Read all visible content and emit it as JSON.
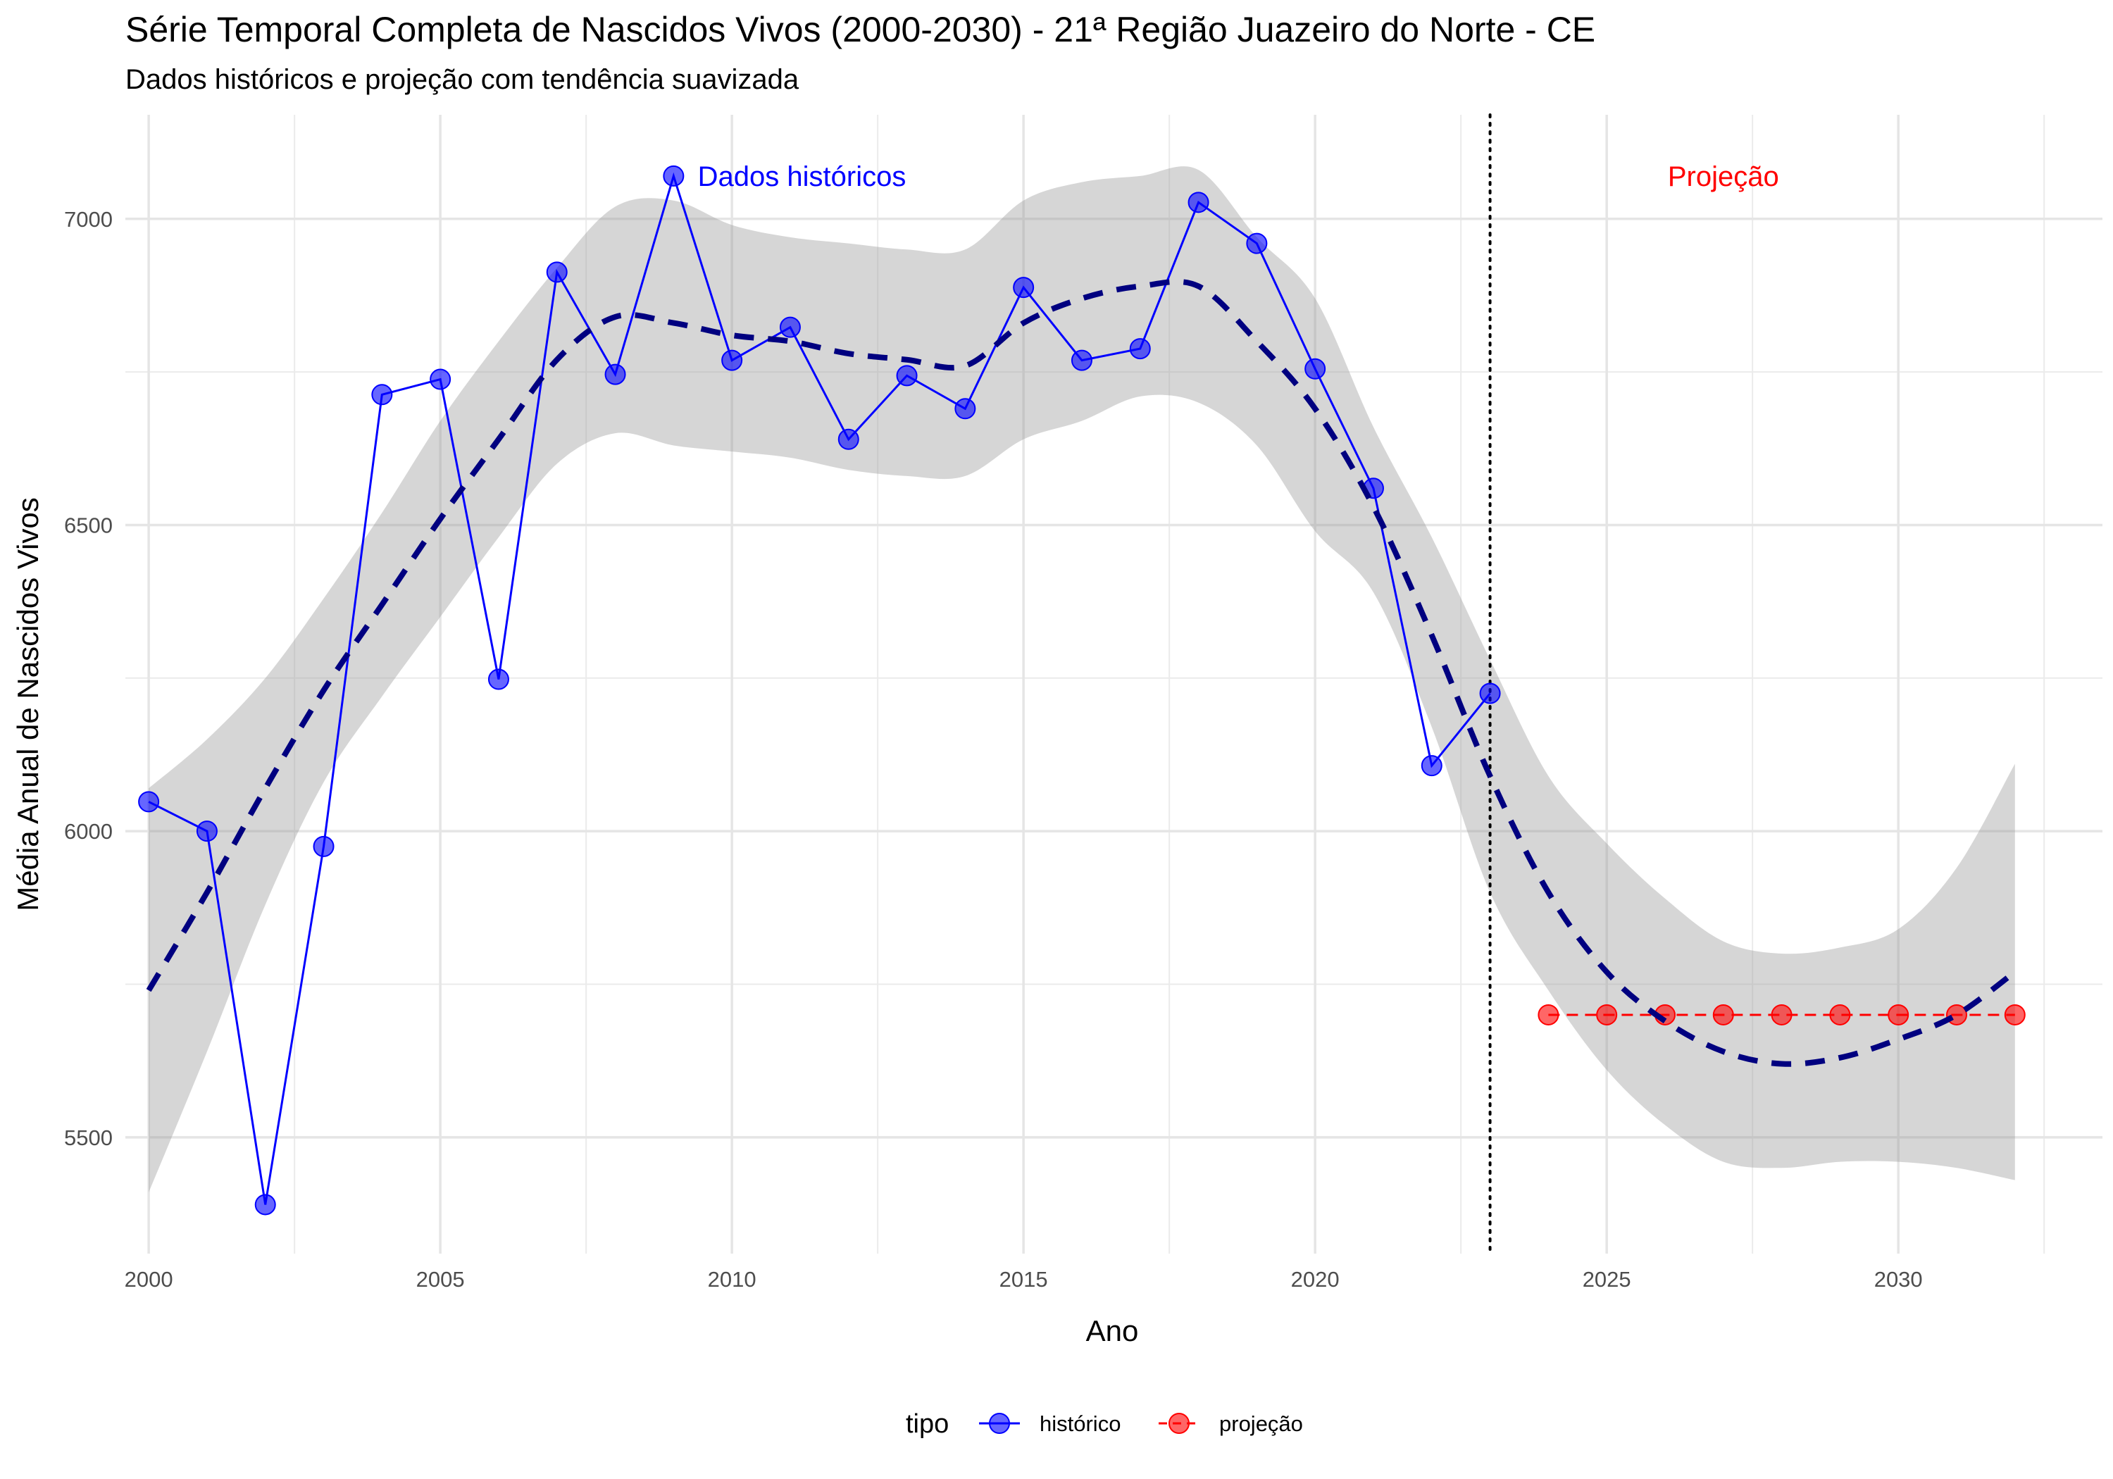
{
  "chart_data": {
    "type": "line",
    "title": "Série Temporal Completa de Nascidos Vivos (2000-2030) -  21ª Região Juazeiro do Norte - CE",
    "subtitle": "Dados históricos e projeção com tendência suavizada",
    "xlabel": "Ano",
    "ylabel": "Média Anual de Nascidos Vivos",
    "xlim": [
      1999.6,
      2033.5
    ],
    "ylim": [
      5310,
      7170
    ],
    "x_ticks": [
      2000,
      2005,
      2010,
      2015,
      2020,
      2025,
      2030
    ],
    "x_tick_labels": [
      "2000",
      "2005",
      "2010",
      "2015",
      "2020",
      "2025",
      "2030"
    ],
    "y_ticks": [
      5500,
      6000,
      6500,
      7000
    ],
    "y_tick_labels": [
      "5500",
      "6000",
      "6500",
      "7000"
    ],
    "grid": true,
    "legend": {
      "title": "tipo",
      "position": "bottom",
      "entries": [
        "histórico",
        "projeção"
      ]
    },
    "divider_year": 2023,
    "annotations": [
      {
        "text": "Dados históricos",
        "x": 2011.2,
        "y": 7070,
        "color": "#0000ff"
      },
      {
        "text": "Projeção",
        "x": 2027.0,
        "y": 7070,
        "color": "#ff0000"
      }
    ],
    "series": [
      {
        "name": "histórico",
        "color": "#0000ff",
        "x": [
          2000,
          2001,
          2002,
          2003,
          2004,
          2005,
          2006,
          2007,
          2008,
          2009,
          2010,
          2011,
          2012,
          2013,
          2014,
          2015,
          2016,
          2017,
          2018,
          2019,
          2020,
          2021,
          2022,
          2023
        ],
        "y": [
          6048,
          6000,
          5390,
          5975,
          6713,
          6738,
          6248,
          6913,
          6746,
          7070,
          6769,
          6823,
          6640,
          6744,
          6690,
          6888,
          6769,
          6788,
          7027,
          6960,
          6755,
          6560,
          6107,
          6225
        ]
      },
      {
        "name": "projeção",
        "color": "#ff0000",
        "x": [
          2024,
          2025,
          2026,
          2027,
          2028,
          2029,
          2030,
          2031,
          2032
        ],
        "y": [
          5700,
          5700,
          5700,
          5700,
          5700,
          5700,
          5700,
          5700,
          5700
        ]
      }
    ],
    "smooth": {
      "color": "#000080",
      "x": [
        2000,
        2001,
        2002,
        2003,
        2004,
        2005,
        2006,
        2007,
        2008,
        2009,
        2010,
        2011,
        2012,
        2013,
        2014,
        2015,
        2016,
        2017,
        2018,
        2019,
        2020,
        2021,
        2022,
        2023,
        2024,
        2025,
        2026,
        2027,
        2028,
        2029,
        2030,
        2031,
        2032
      ],
      "y": [
        5740,
        5900,
        6070,
        6230,
        6370,
        6510,
        6640,
        6770,
        6840,
        6830,
        6810,
        6800,
        6780,
        6770,
        6760,
        6830,
        6870,
        6890,
        6890,
        6800,
        6690,
        6530,
        6320,
        6090,
        5900,
        5770,
        5690,
        5640,
        5620,
        5630,
        5660,
        5700,
        5770
      ],
      "upper": [
        6070,
        6150,
        6250,
        6380,
        6520,
        6670,
        6800,
        6920,
        7020,
        7030,
        6990,
        6970,
        6960,
        6950,
        6950,
        7030,
        7060,
        7070,
        7080,
        6970,
        6870,
        6660,
        6480,
        6280,
        6090,
        5980,
        5890,
        5820,
        5800,
        5810,
        5840,
        5940,
        6110
      ],
      "lower": [
        5410,
        5640,
        5880,
        6080,
        6220,
        6350,
        6480,
        6600,
        6650,
        6630,
        6620,
        6610,
        6590,
        6580,
        6580,
        6640,
        6670,
        6710,
        6700,
        6630,
        6490,
        6390,
        6170,
        5900,
        5740,
        5610,
        5520,
        5460,
        5450,
        5460,
        5460,
        5450,
        5430
      ]
    }
  }
}
